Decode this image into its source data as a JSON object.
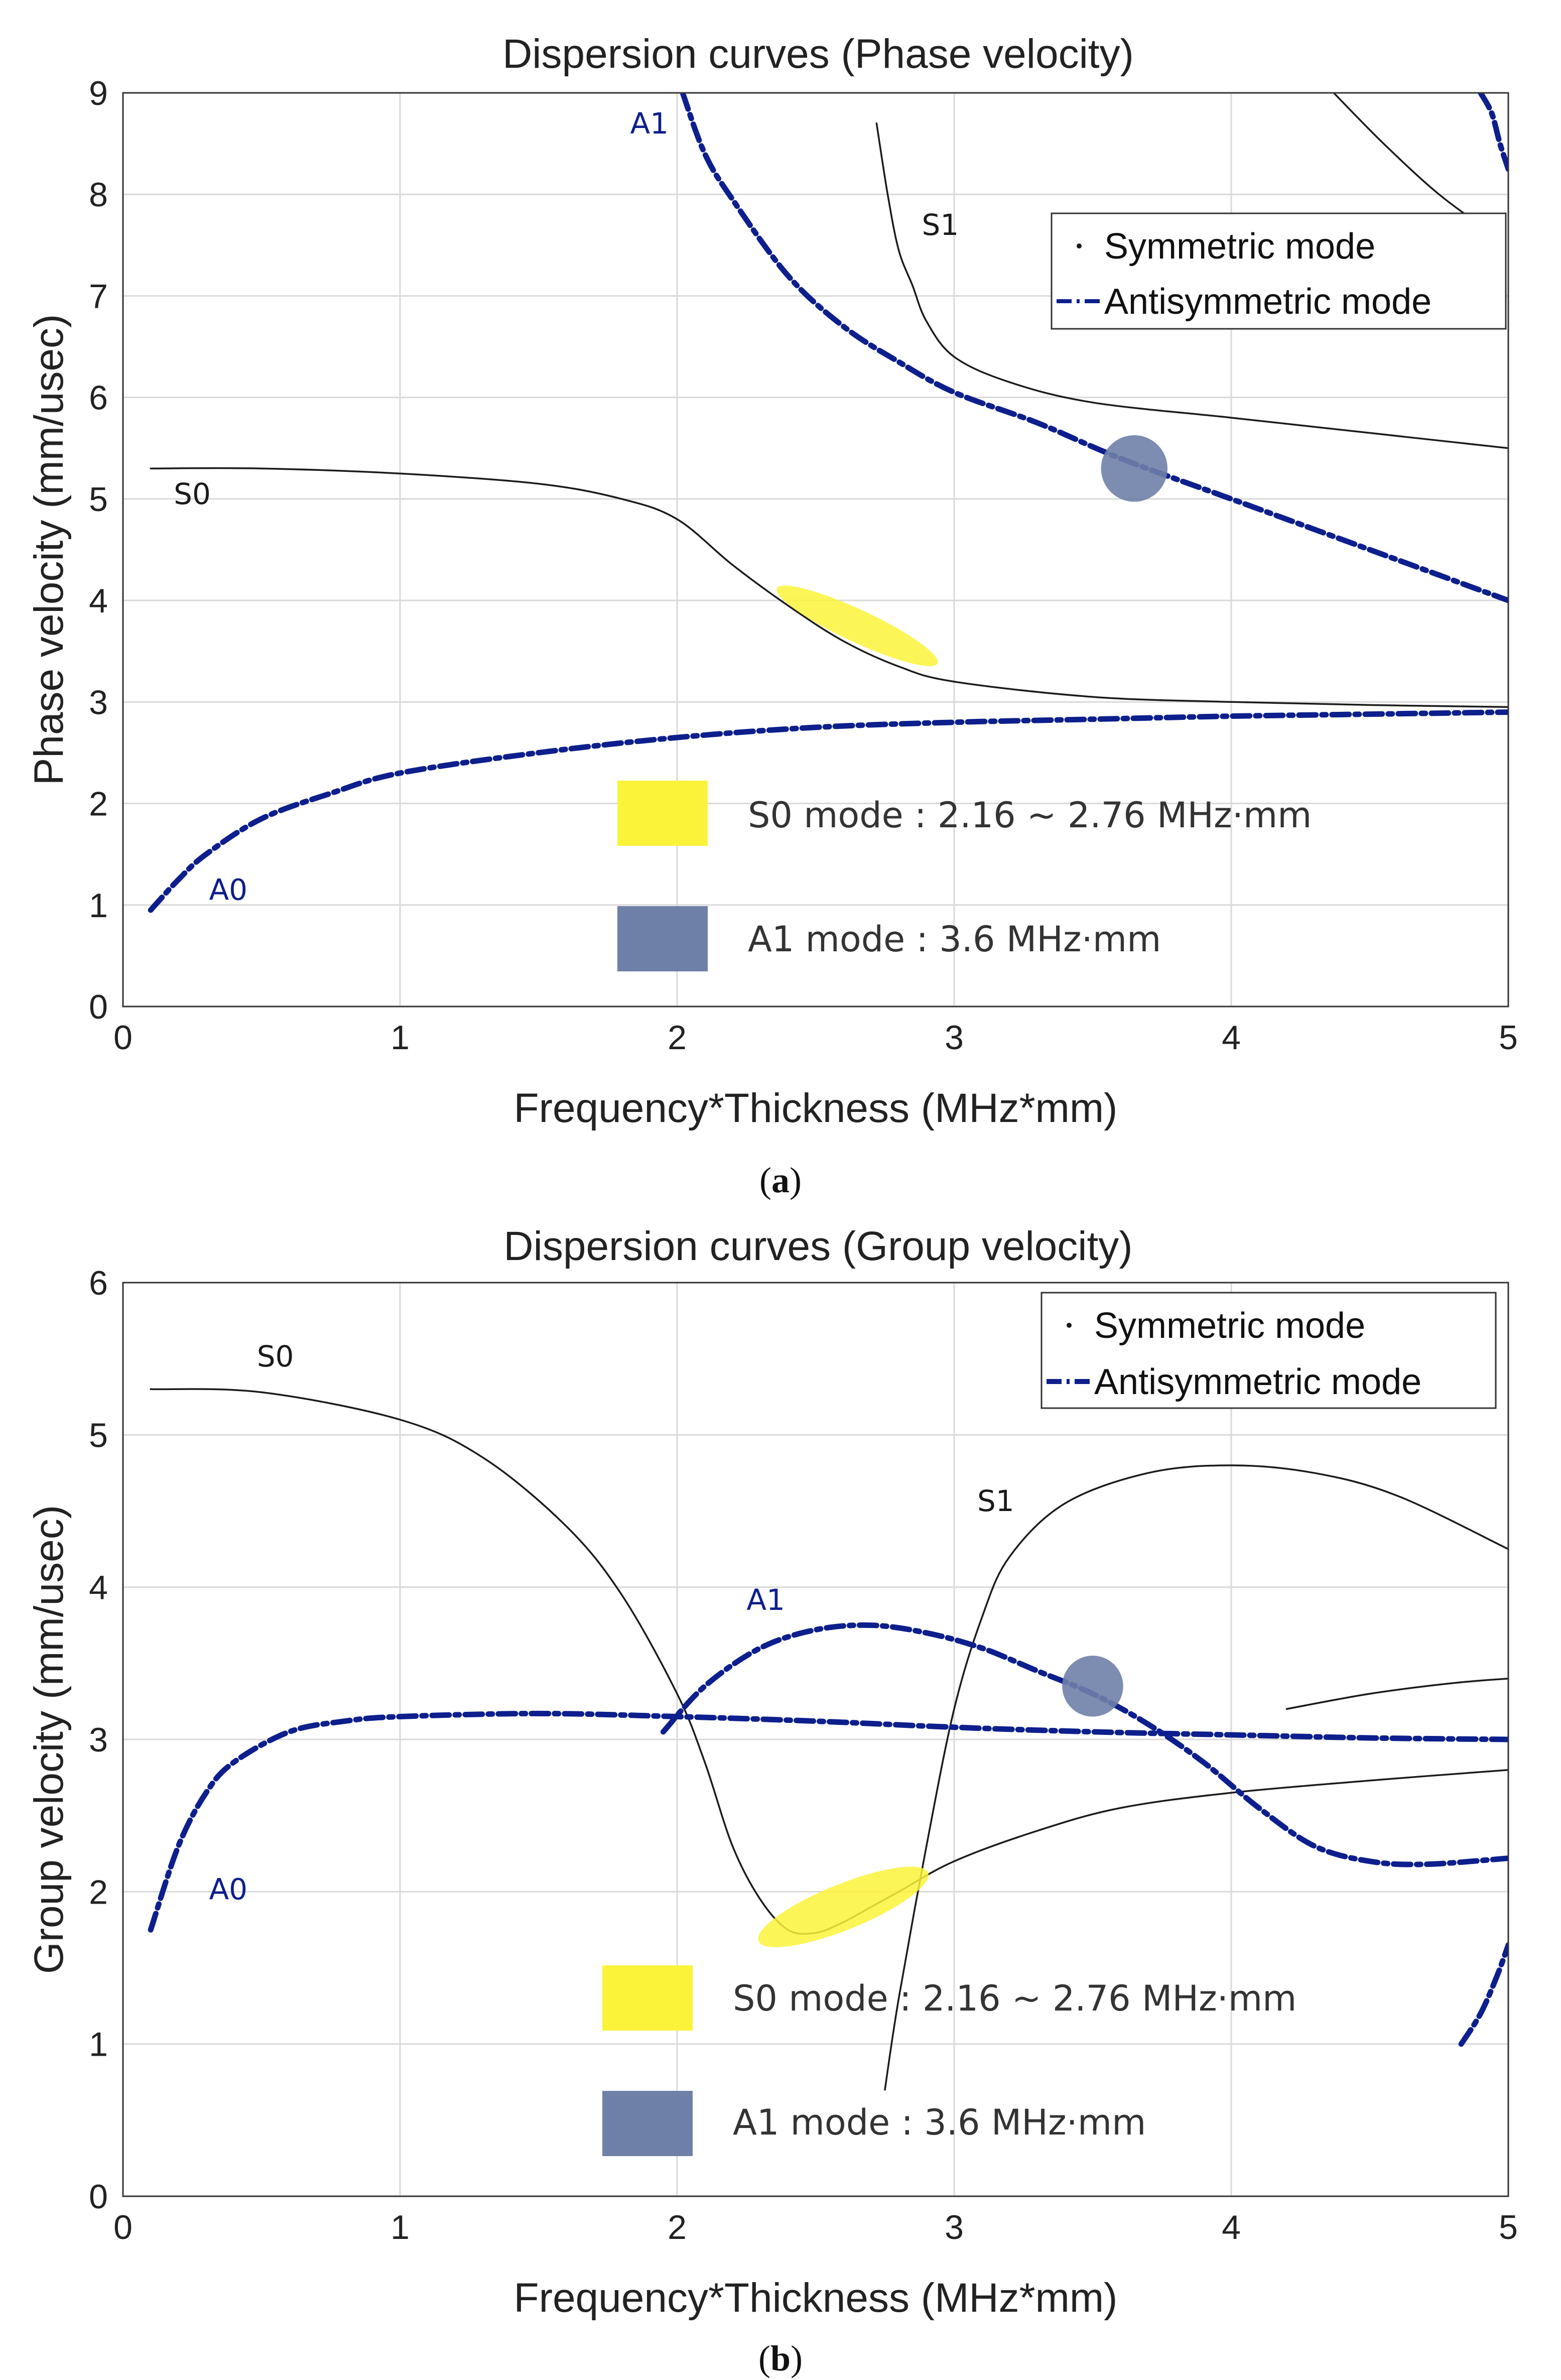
{
  "colors": {
    "symmetric": "#1a1a1a",
    "antisymmetric": "#0d1f8c",
    "highlight_s0": "#fbf33a",
    "highlight_a1": "#6f80a8",
    "grid": "#d9d9d9"
  },
  "legend": {
    "symmetric": "Symmetric mode",
    "antisymmetric": "Antisymmetric mode"
  },
  "notes": {
    "s0_mode": "S0 mode : 2.16 ~ 2.76 MHz·mm",
    "a1_mode": "A1 mode : 3.6 MHz·mm"
  },
  "captions": {
    "a": "a",
    "b": "b"
  },
  "chart_data": [
    {
      "type": "line",
      "title": "Dispersion curves (Phase velocity)",
      "xlabel": "Frequency*Thickness (MHz*mm)",
      "ylabel": "Phase velocity (mm/usec)",
      "xlim": [
        0,
        5
      ],
      "ylim": [
        0,
        9
      ],
      "xticks": [
        0,
        1,
        2,
        3,
        4,
        5
      ],
      "yticks": [
        0,
        1,
        2,
        3,
        4,
        5,
        6,
        7,
        8,
        9
      ],
      "grid": true,
      "legend_position": "top-right",
      "series": [
        {
          "name": "S0",
          "mode": "symmetric",
          "label_at": [
            0.25,
            4.95
          ],
          "x": [
            0.1,
            0.5,
            1.0,
            1.5,
            1.8,
            2.0,
            2.2,
            2.4,
            2.6,
            2.8,
            3.0,
            3.5,
            4.0,
            4.5,
            5.0
          ],
          "y": [
            5.3,
            5.3,
            5.25,
            5.15,
            5.0,
            4.8,
            4.35,
            3.95,
            3.6,
            3.35,
            3.2,
            3.05,
            3.0,
            2.97,
            2.95
          ]
        },
        {
          "name": "S1",
          "mode": "symmetric",
          "label_at": [
            2.95,
            7.6
          ],
          "x": [
            2.72,
            2.76,
            2.8,
            2.85,
            2.9,
            3.0,
            3.2,
            3.5,
            4.0,
            4.5,
            5.0
          ],
          "y": [
            8.7,
            8.0,
            7.45,
            7.1,
            6.75,
            6.4,
            6.15,
            5.95,
            5.8,
            5.65,
            5.5
          ]
        },
        {
          "name": "",
          "mode": "symmetric",
          "x": [
            4.37,
            4.55,
            4.75,
            4.95
          ],
          "y": [
            9.0,
            8.5,
            8.0,
            7.6
          ]
        },
        {
          "name": "A0",
          "mode": "antisymmetric",
          "label_at": [
            0.38,
            1.05
          ],
          "x": [
            0.1,
            0.2,
            0.3,
            0.5,
            0.75,
            1.0,
            1.5,
            2.0,
            2.5,
            3.0,
            3.5,
            4.0,
            4.5,
            5.0
          ],
          "y": [
            0.95,
            1.25,
            1.5,
            1.85,
            2.1,
            2.3,
            2.5,
            2.65,
            2.75,
            2.8,
            2.83,
            2.86,
            2.88,
            2.9
          ]
        },
        {
          "name": "A1",
          "mode": "antisymmetric",
          "label_at": [
            1.9,
            8.6
          ],
          "x": [
            2.02,
            2.1,
            2.2,
            2.4,
            2.6,
            2.8,
            3.0,
            3.3,
            3.6,
            4.0,
            4.5,
            5.0
          ],
          "y": [
            9.0,
            8.4,
            7.95,
            7.2,
            6.7,
            6.35,
            6.05,
            5.75,
            5.4,
            5.0,
            4.5,
            4.0
          ]
        },
        {
          "name": "",
          "mode": "antisymmetric",
          "x": [
            4.9,
            4.94,
            4.97,
            5.0
          ],
          "y": [
            9.0,
            8.8,
            8.5,
            8.25
          ]
        }
      ],
      "highlights": [
        {
          "mode": "S0",
          "type": "ellipse",
          "center": [
            2.65,
            3.75
          ],
          "rx": 0.32,
          "ry": 0.32,
          "tilt_deg": 25
        },
        {
          "mode": "A1",
          "type": "circle",
          "center": [
            3.65,
            5.3
          ],
          "r": 0.12
        }
      ]
    },
    {
      "type": "line",
      "title": "Dispersion curves (Group velocity)",
      "xlabel": "Frequency*Thickness (MHz*mm)",
      "ylabel": "Group velocity (mm/usec)",
      "xlim": [
        0,
        5
      ],
      "ylim": [
        0,
        6
      ],
      "xticks": [
        0,
        1,
        2,
        3,
        4,
        5
      ],
      "yticks": [
        0,
        1,
        2,
        3,
        4,
        5,
        6
      ],
      "grid": true,
      "legend_position": "top-right",
      "series": [
        {
          "name": "S0",
          "mode": "symmetric",
          "label_at": [
            0.55,
            5.45
          ],
          "x": [
            0.1,
            0.5,
            1.0,
            1.3,
            1.6,
            1.8,
            2.0,
            2.1,
            2.2,
            2.3,
            2.4,
            2.5,
            2.6,
            2.7,
            2.8,
            3.0,
            3.3,
            3.6,
            4.0,
            4.5,
            5.0
          ],
          "y": [
            5.3,
            5.28,
            5.1,
            4.85,
            4.4,
            3.95,
            3.3,
            2.85,
            2.3,
            1.95,
            1.75,
            1.73,
            1.8,
            1.9,
            2.0,
            2.2,
            2.4,
            2.55,
            2.65,
            2.73,
            2.8
          ]
        },
        {
          "name": "S1",
          "mode": "symmetric",
          "label_at": [
            3.15,
            4.5
          ],
          "x": [
            2.75,
            2.8,
            2.9,
            3.0,
            3.1,
            3.2,
            3.4,
            3.7,
            4.0,
            4.3,
            4.6,
            5.0
          ],
          "y": [
            0.7,
            1.3,
            2.3,
            3.2,
            3.8,
            4.2,
            4.55,
            4.75,
            4.8,
            4.75,
            4.6,
            4.25
          ]
        },
        {
          "name": "",
          "mode": "symmetric",
          "x": [
            4.2,
            4.5,
            4.8,
            5.0
          ],
          "y": [
            3.2,
            3.3,
            3.37,
            3.4
          ]
        },
        {
          "name": "A0",
          "mode": "antisymmetric",
          "label_at": [
            0.38,
            1.95
          ],
          "x": [
            0.1,
            0.2,
            0.3,
            0.4,
            0.6,
            0.8,
            1.0,
            1.5,
            2.0,
            2.5,
            3.0,
            3.5,
            4.0,
            4.5,
            5.0
          ],
          "y": [
            1.75,
            2.3,
            2.65,
            2.85,
            3.05,
            3.12,
            3.15,
            3.17,
            3.15,
            3.12,
            3.08,
            3.05,
            3.03,
            3.01,
            3.0
          ]
        },
        {
          "name": "A1",
          "mode": "antisymmetric",
          "label_at": [
            2.32,
            3.85
          ],
          "x": [
            1.95,
            2.1,
            2.3,
            2.5,
            2.7,
            2.9,
            3.1,
            3.3,
            3.5,
            3.7,
            3.9,
            4.1,
            4.3,
            4.5,
            4.7,
            5.0
          ],
          "y": [
            3.05,
            3.35,
            3.6,
            3.72,
            3.75,
            3.7,
            3.6,
            3.45,
            3.3,
            3.1,
            2.85,
            2.55,
            2.3,
            2.2,
            2.18,
            2.22
          ]
        },
        {
          "name": "",
          "mode": "antisymmetric",
          "x": [
            4.83,
            4.9,
            4.96,
            5.0
          ],
          "y": [
            1.0,
            1.2,
            1.45,
            1.65
          ]
        }
      ],
      "highlights": [
        {
          "mode": "S0",
          "type": "ellipse",
          "center": [
            2.6,
            1.9
          ],
          "rx": 0.33,
          "ry": 0.3,
          "tilt_deg": -22
        },
        {
          "mode": "A1",
          "type": "circle",
          "center": [
            3.5,
            3.35
          ],
          "r": 0.11
        }
      ]
    }
  ]
}
